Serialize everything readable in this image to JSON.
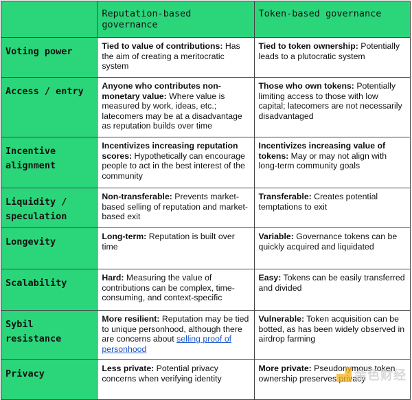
{
  "header": {
    "corner": "",
    "col1": "Reputation-based governance",
    "col2": "Token-based governance"
  },
  "rows": [
    {
      "label": "Voting power",
      "rep_bold": "Tied to value of contributions:",
      "rep_text": " Has the aim of creating a meritocratic system",
      "tok_bold": "Tied to token ownership:",
      "tok_text": " Potentially leads to a plutocratic system"
    },
    {
      "label": "Access / entry",
      "rep_bold": "Anyone who contributes non-monetary value:",
      "rep_text": " Where value is measured by work, ideas, etc.; latecomers may be at a disadvantage as reputation builds over time",
      "tok_bold": "Those who own tokens:",
      "tok_text": " Potentially limiting access to those with low capital; latecomers are not necessarily disadvantaged"
    },
    {
      "label": "Incentive alignment",
      "rep_bold": "Incentivizes increasing reputation scores:",
      "rep_text": " Hypothetically can encourage people to act in the best interest of the community",
      "tok_bold": "Incentivizes increasing value of tokens:",
      "tok_text": " May or may not align with long-term community goals"
    },
    {
      "label": "Liquidity / speculation",
      "rep_bold": "Non-transferable:",
      "rep_text": " Prevents market-based selling of reputation and market-based exit",
      "tok_bold": "Transferable:",
      "tok_text": " Creates potential temptations to exit"
    },
    {
      "label": "Longevity",
      "rep_bold": "Long-term:",
      "rep_text": " Reputation is built over time",
      "tok_bold": "Variable:",
      "tok_text": " Governance tokens can be quickly acquired and liquidated"
    },
    {
      "label": "Scalability",
      "rep_bold": "Hard:",
      "rep_text": " Measuring the value of contributions can be complex, time-consuming, and context-specific",
      "tok_bold": "Easy:",
      "tok_text": " Tokens can be easily transferred and divided"
    },
    {
      "label": "Sybil resistance",
      "rep_bold": "More resilient:",
      "rep_text": " Reputation may be tied to unique personhood, although there are concerns about ",
      "rep_link": "selling proof of personhood",
      "tok_bold": "Vulnerable:",
      "tok_text": " Token acquisition can be botted, as has been widely observed in airdrop farming"
    },
    {
      "label": "Privacy",
      "rep_bold": "Less private:",
      "rep_text": " Potential privacy concerns when verifying identity",
      "tok_bold": "More private:",
      "tok_text": " Pseudonymous token ownership preserves privacy"
    }
  ],
  "watermark": {
    "text": "金色财经"
  },
  "colors": {
    "header_green": "#2bd67b",
    "link": "#1a55c8"
  }
}
